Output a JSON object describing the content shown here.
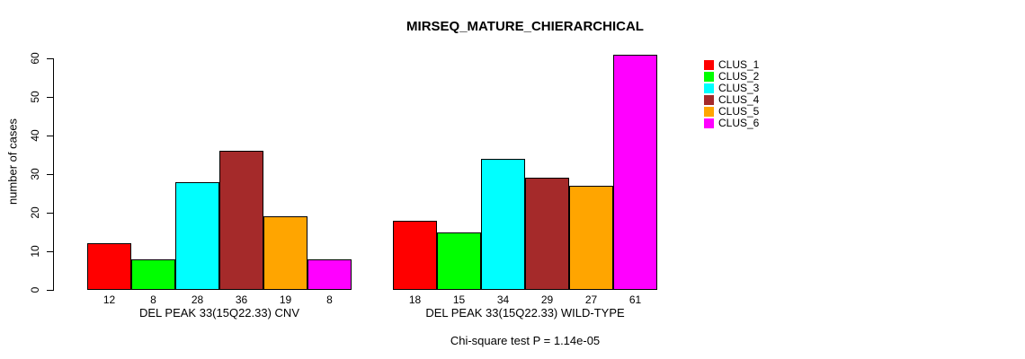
{
  "chart_data": {
    "type": "bar",
    "title": "MIRSEQ_MATURE_CHIERARCHICAL",
    "ylabel": "number of cases",
    "subtitle": "Chi-square test P = 1.14e-05",
    "ylim": [
      0,
      60
    ],
    "yticks": [
      0,
      10,
      20,
      30,
      40,
      50,
      60
    ],
    "grid": false,
    "legend_position": "right",
    "bar_border_color": "#000000",
    "series": [
      {
        "name": "CLUS_1",
        "color": "#FF0000"
      },
      {
        "name": "CLUS_2",
        "color": "#00FF00"
      },
      {
        "name": "CLUS_3",
        "color": "#00FFFF"
      },
      {
        "name": "CLUS_4",
        "color": "#A52A2A"
      },
      {
        "name": "CLUS_5",
        "color": "#FFA500"
      },
      {
        "name": "CLUS_6",
        "color": "#FF00FF"
      }
    ],
    "groups": [
      {
        "label": "DEL PEAK 33(15Q22.33) CNV",
        "values": [
          12,
          8,
          28,
          36,
          19,
          8
        ]
      },
      {
        "label": "DEL PEAK 33(15Q22.33) WILD-TYPE",
        "values": [
          18,
          15,
          34,
          29,
          27,
          61
        ]
      }
    ]
  }
}
